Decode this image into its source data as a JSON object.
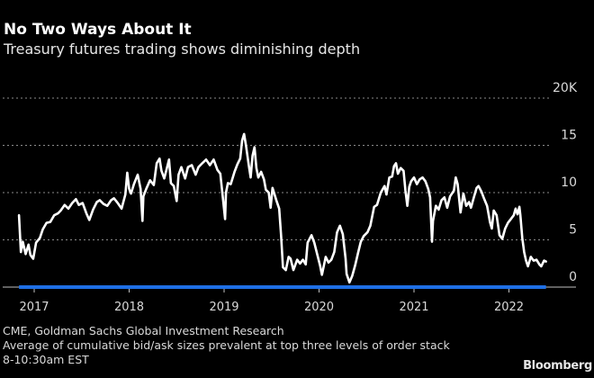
{
  "chart_data": {
    "type": "line",
    "title": "No Two Ways About It",
    "subtitle": "Treasury futures trading shows diminishing depth",
    "xlabel": "",
    "ylabel": "",
    "y_unit_label": "20K",
    "ylim": [
      0,
      20
    ],
    "yticks": [
      "0",
      "5",
      "10",
      "15",
      "20K"
    ],
    "ytick_values": [
      0,
      5,
      10,
      15,
      20
    ],
    "xticks": [
      "2017",
      "2018",
      "2019",
      "2020",
      "2021",
      "2022"
    ],
    "xtick_values": [
      2017,
      2018,
      2019,
      2020,
      2021,
      2022
    ],
    "xlim": [
      2016.84,
      2022.5
    ],
    "grid": true,
    "legend": "none",
    "line_color": "#ffffff",
    "highlight_bar_color": "#1f6fe5",
    "series": [
      {
        "name": "Average cumulative bid/ask size (thousands)",
        "points": [
          [
            2016.84,
            7.6
          ],
          [
            2016.86,
            3.7
          ],
          [
            2016.88,
            4.8
          ],
          [
            2016.91,
            3.5
          ],
          [
            2016.94,
            4.5
          ],
          [
            2016.96,
            3.4
          ],
          [
            2016.99,
            3.0
          ],
          [
            2017.02,
            4.7
          ],
          [
            2017.06,
            5.2
          ],
          [
            2017.09,
            6.1
          ],
          [
            2017.13,
            6.8
          ],
          [
            2017.17,
            6.9
          ],
          [
            2017.21,
            7.6
          ],
          [
            2017.25,
            7.8
          ],
          [
            2017.28,
            8.1
          ],
          [
            2017.32,
            8.7
          ],
          [
            2017.36,
            8.3
          ],
          [
            2017.4,
            8.9
          ],
          [
            2017.44,
            9.3
          ],
          [
            2017.47,
            8.7
          ],
          [
            2017.51,
            8.9
          ],
          [
            2017.55,
            7.8
          ],
          [
            2017.58,
            7.1
          ],
          [
            2017.62,
            8.2
          ],
          [
            2017.66,
            9.0
          ],
          [
            2017.69,
            9.2
          ],
          [
            2017.73,
            8.8
          ],
          [
            2017.77,
            8.6
          ],
          [
            2017.81,
            9.2
          ],
          [
            2017.84,
            9.4
          ],
          [
            2017.88,
            8.9
          ],
          [
            2017.92,
            8.3
          ],
          [
            2017.96,
            9.8
          ],
          [
            2017.98,
            12.1
          ],
          [
            2018.0,
            10.4
          ],
          [
            2018.02,
            9.9
          ],
          [
            2018.05,
            10.9
          ],
          [
            2018.09,
            11.9
          ],
          [
            2018.12,
            10.4
          ],
          [
            2018.14,
            7.0
          ],
          [
            2018.15,
            9.6
          ],
          [
            2018.18,
            10.4
          ],
          [
            2018.22,
            11.3
          ],
          [
            2018.26,
            10.8
          ],
          [
            2018.29,
            13.1
          ],
          [
            2018.32,
            13.6
          ],
          [
            2018.34,
            12.3
          ],
          [
            2018.37,
            11.5
          ],
          [
            2018.4,
            12.7
          ],
          [
            2018.42,
            13.5
          ],
          [
            2018.44,
            11.0
          ],
          [
            2018.47,
            10.7
          ],
          [
            2018.5,
            9.1
          ],
          [
            2018.52,
            11.9
          ],
          [
            2018.55,
            12.7
          ],
          [
            2018.59,
            11.5
          ],
          [
            2018.62,
            12.7
          ],
          [
            2018.66,
            12.9
          ],
          [
            2018.7,
            11.9
          ],
          [
            2018.73,
            12.7
          ],
          [
            2018.77,
            13.1
          ],
          [
            2018.81,
            13.5
          ],
          [
            2018.85,
            12.9
          ],
          [
            2018.89,
            13.5
          ],
          [
            2018.93,
            12.4
          ],
          [
            2018.96,
            12.0
          ],
          [
            2018.98,
            10.1
          ],
          [
            2019.01,
            7.2
          ],
          [
            2019.02,
            10.0
          ],
          [
            2019.04,
            11.0
          ],
          [
            2019.07,
            10.9
          ],
          [
            2019.11,
            12.2
          ],
          [
            2019.14,
            13.0
          ],
          [
            2019.17,
            13.6
          ],
          [
            2019.19,
            15.5
          ],
          [
            2019.21,
            16.2
          ],
          [
            2019.23,
            15.0
          ],
          [
            2019.26,
            12.9
          ],
          [
            2019.28,
            11.6
          ],
          [
            2019.3,
            13.9
          ],
          [
            2019.32,
            14.8
          ],
          [
            2019.34,
            12.6
          ],
          [
            2019.36,
            11.6
          ],
          [
            2019.39,
            12.2
          ],
          [
            2019.42,
            11.4
          ],
          [
            2019.44,
            10.3
          ],
          [
            2019.47,
            10.0
          ],
          [
            2019.49,
            8.4
          ],
          [
            2019.51,
            10.5
          ],
          [
            2019.55,
            9.2
          ],
          [
            2019.58,
            8.3
          ],
          [
            2019.6,
            5.5
          ],
          [
            2019.62,
            2.1
          ],
          [
            2019.65,
            1.8
          ],
          [
            2019.68,
            3.2
          ],
          [
            2019.7,
            3.0
          ],
          [
            2019.73,
            1.8
          ],
          [
            2019.77,
            2.9
          ],
          [
            2019.8,
            2.5
          ],
          [
            2019.83,
            2.9
          ],
          [
            2019.86,
            2.4
          ],
          [
            2019.88,
            4.7
          ],
          [
            2019.92,
            5.5
          ],
          [
            2019.95,
            4.7
          ],
          [
            2019.98,
            3.5
          ],
          [
            2020.01,
            2.3
          ],
          [
            2020.03,
            1.3
          ],
          [
            2020.07,
            3.2
          ],
          [
            2020.1,
            2.6
          ],
          [
            2020.13,
            2.9
          ],
          [
            2020.16,
            3.7
          ],
          [
            2020.19,
            5.8
          ],
          [
            2020.22,
            6.5
          ],
          [
            2020.25,
            5.6
          ],
          [
            2020.28,
            3.0
          ],
          [
            2020.29,
            1.4
          ],
          [
            2020.32,
            0.5
          ],
          [
            2020.35,
            1.2
          ],
          [
            2020.38,
            2.3
          ],
          [
            2020.41,
            3.6
          ],
          [
            2020.44,
            4.8
          ],
          [
            2020.47,
            5.4
          ],
          [
            2020.51,
            5.8
          ],
          [
            2020.54,
            6.5
          ],
          [
            2020.58,
            8.5
          ],
          [
            2020.61,
            8.7
          ],
          [
            2020.65,
            10.0
          ],
          [
            2020.69,
            10.7
          ],
          [
            2020.71,
            9.8
          ],
          [
            2020.74,
            11.6
          ],
          [
            2020.77,
            11.7
          ],
          [
            2020.79,
            12.8
          ],
          [
            2020.81,
            13.1
          ],
          [
            2020.83,
            12.0
          ],
          [
            2020.86,
            12.6
          ],
          [
            2020.89,
            12.3
          ],
          [
            2020.91,
            10.2
          ],
          [
            2020.93,
            8.6
          ],
          [
            2020.95,
            10.6
          ],
          [
            2020.97,
            11.2
          ],
          [
            2021.0,
            11.6
          ],
          [
            2021.03,
            10.9
          ],
          [
            2021.06,
            11.4
          ],
          [
            2021.09,
            11.6
          ],
          [
            2021.12,
            11.2
          ],
          [
            2021.15,
            10.4
          ],
          [
            2021.17,
            9.5
          ],
          [
            2021.19,
            4.8
          ],
          [
            2021.2,
            7.0
          ],
          [
            2021.23,
            8.6
          ],
          [
            2021.26,
            8.2
          ],
          [
            2021.29,
            9.2
          ],
          [
            2021.32,
            9.5
          ],
          [
            2021.35,
            8.4
          ],
          [
            2021.38,
            9.6
          ],
          [
            2021.42,
            10.2
          ],
          [
            2021.44,
            11.6
          ],
          [
            2021.46,
            10.9
          ],
          [
            2021.49,
            7.9
          ],
          [
            2021.52,
            9.9
          ],
          [
            2021.55,
            8.6
          ],
          [
            2021.58,
            9.0
          ],
          [
            2021.6,
            8.4
          ],
          [
            2021.63,
            9.5
          ],
          [
            2021.66,
            10.5
          ],
          [
            2021.68,
            10.7
          ],
          [
            2021.71,
            10.1
          ],
          [
            2021.74,
            9.3
          ],
          [
            2021.77,
            8.6
          ],
          [
            2021.8,
            6.9
          ],
          [
            2021.82,
            6.2
          ],
          [
            2021.84,
            8.1
          ],
          [
            2021.87,
            7.6
          ],
          [
            2021.9,
            5.5
          ],
          [
            2021.93,
            5.1
          ],
          [
            2021.96,
            6.2
          ],
          [
            2021.99,
            6.8
          ],
          [
            2022.02,
            7.2
          ],
          [
            2022.05,
            7.6
          ],
          [
            2022.07,
            8.3
          ],
          [
            2022.09,
            7.7
          ],
          [
            2022.11,
            8.5
          ],
          [
            2022.12,
            7.6
          ],
          [
            2022.14,
            5.2
          ],
          [
            2022.16,
            3.7
          ],
          [
            2022.18,
            2.8
          ],
          [
            2022.2,
            2.2
          ],
          [
            2022.23,
            3.2
          ],
          [
            2022.26,
            2.8
          ],
          [
            2022.29,
            2.9
          ],
          [
            2022.32,
            2.4
          ],
          [
            2022.34,
            2.2
          ],
          [
            2022.37,
            2.8
          ],
          [
            2022.39,
            2.7
          ]
        ]
      }
    ]
  },
  "footer": {
    "source": "CME, Goldman Sachs Global Investment Research",
    "note": "Average of cumulative bid/ask sizes prevalent at top three levels of order stack",
    "time_window": "8-10:30am EST",
    "brand": "Bloomberg"
  }
}
